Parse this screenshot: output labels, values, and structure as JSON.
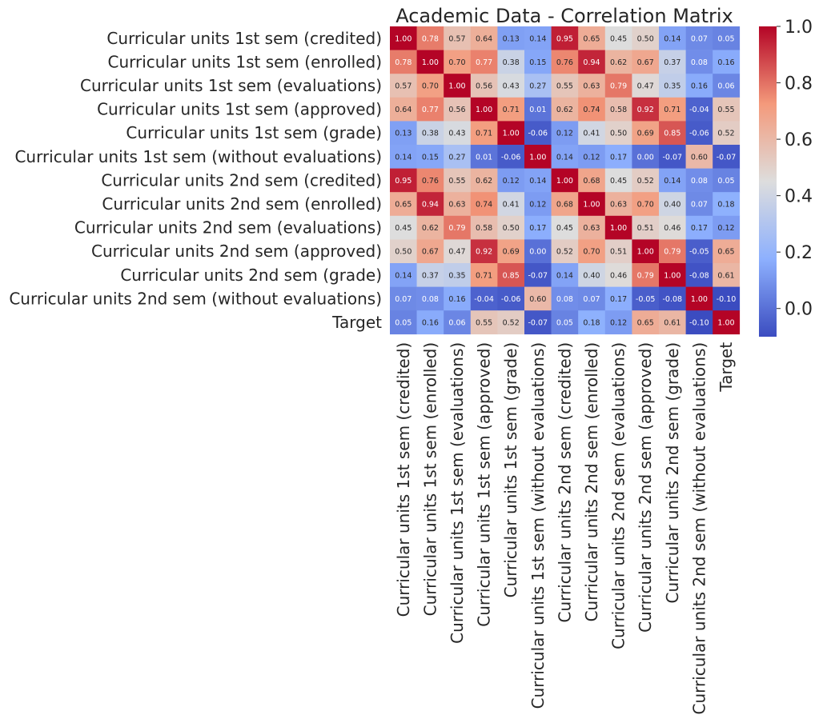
{
  "chart_data": {
    "type": "heatmap",
    "title": "Academic Data - Correlation Matrix",
    "labels": [
      "Curricular units 1st sem (credited)",
      "Curricular units 1st sem (enrolled)",
      "Curricular units 1st sem (evaluations)",
      "Curricular units 1st sem (approved)",
      "Curricular units 1st sem (grade)",
      "Curricular units 1st sem (without evaluations)",
      "Curricular units 2nd sem (credited)",
      "Curricular units 2nd sem (enrolled)",
      "Curricular units 2nd sem (evaluations)",
      "Curricular units 2nd sem (approved)",
      "Curricular units 2nd sem (grade)",
      "Curricular units 2nd sem (without evaluations)",
      "Target"
    ],
    "matrix": [
      [
        1.0,
        0.78,
        0.57,
        0.64,
        0.13,
        0.14,
        0.95,
        0.65,
        0.45,
        0.5,
        0.14,
        0.07,
        0.05
      ],
      [
        0.78,
        1.0,
        0.7,
        0.77,
        0.38,
        0.15,
        0.76,
        0.94,
        0.62,
        0.67,
        0.37,
        0.08,
        0.16
      ],
      [
        0.57,
        0.7,
        1.0,
        0.56,
        0.43,
        0.27,
        0.55,
        0.63,
        0.79,
        0.47,
        0.35,
        0.16,
        0.06
      ],
      [
        0.64,
        0.77,
        0.56,
        1.0,
        0.71,
        0.01,
        0.62,
        0.74,
        0.58,
        0.92,
        0.71,
        -0.04,
        0.55
      ],
      [
        0.13,
        0.38,
        0.43,
        0.71,
        1.0,
        -0.06,
        0.12,
        0.41,
        0.5,
        0.69,
        0.85,
        -0.06,
        0.52
      ],
      [
        0.14,
        0.15,
        0.27,
        0.01,
        -0.06,
        1.0,
        0.14,
        0.12,
        0.17,
        0.0,
        -0.07,
        0.6,
        -0.07
      ],
      [
        0.95,
        0.76,
        0.55,
        0.62,
        0.12,
        0.14,
        1.0,
        0.68,
        0.45,
        0.52,
        0.14,
        0.08,
        0.05
      ],
      [
        0.65,
        0.94,
        0.63,
        0.74,
        0.41,
        0.12,
        0.68,
        1.0,
        0.63,
        0.7,
        0.4,
        0.07,
        0.18
      ],
      [
        0.45,
        0.62,
        0.79,
        0.58,
        0.5,
        0.17,
        0.45,
        0.63,
        1.0,
        0.51,
        0.46,
        0.17,
        0.12
      ],
      [
        0.5,
        0.67,
        0.47,
        0.92,
        0.69,
        0.0,
        0.52,
        0.7,
        0.51,
        1.0,
        0.79,
        -0.05,
        0.65
      ],
      [
        0.14,
        0.37,
        0.35,
        0.71,
        0.85,
        -0.07,
        0.14,
        0.4,
        0.46,
        0.79,
        1.0,
        -0.08,
        0.61
      ],
      [
        0.07,
        0.08,
        0.16,
        -0.04,
        -0.06,
        0.6,
        0.08,
        0.07,
        0.17,
        -0.05,
        -0.08,
        1.0,
        -0.1
      ],
      [
        0.05,
        0.16,
        0.06,
        0.55,
        0.52,
        -0.07,
        0.05,
        0.18,
        0.12,
        0.65,
        0.61,
        -0.1,
        1.0
      ]
    ],
    "value_format": "0.00",
    "colormap": "coolwarm",
    "colorbar": {
      "vmin": -0.1,
      "vmax": 1.0,
      "ticks": [
        "0.0",
        "0.2",
        "0.4",
        "0.6",
        "0.8",
        "1.0"
      ]
    }
  }
}
